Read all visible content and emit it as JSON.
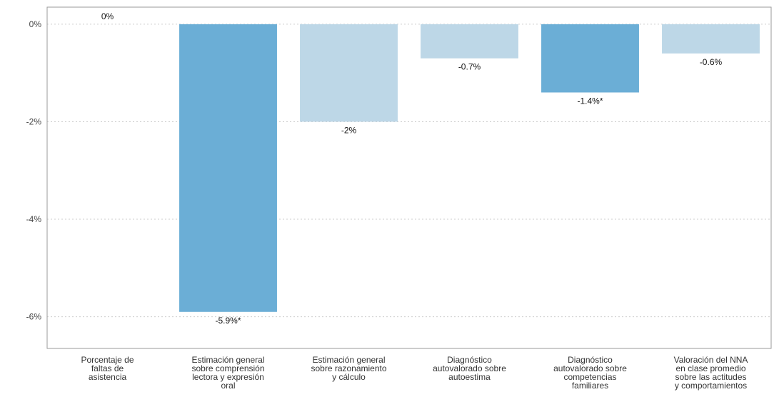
{
  "chart_data": {
    "type": "bar",
    "title": "",
    "xlabel": "",
    "ylabel": "",
    "ylim": [
      -6.65,
      0.35
    ],
    "yticks": [
      0,
      -2,
      -4,
      -6
    ],
    "ytick_labels": [
      "0%",
      "-2%",
      "-4%",
      "-6%"
    ],
    "grid": true,
    "categories": [
      [
        "Porcentaje de",
        "faltas de",
        "asistencia"
      ],
      [
        "Estimación general",
        "sobre comprensión",
        "lectora y expresión",
        "oral"
      ],
      [
        "Estimación general",
        "sobre razonamiento",
        "y cálculo"
      ],
      [
        "Diagnóstico",
        "autovalorado sobre",
        "autoestima"
      ],
      [
        "Diagnóstico",
        "autovalorado sobre",
        "competencias",
        "familiares"
      ],
      [
        "Valoración del NNA",
        "en clase promedio",
        "sobre las actitudes",
        "y comportamientos"
      ]
    ],
    "values": [
      0,
      -5.9,
      -2.0,
      -0.7,
      -1.4,
      -0.6
    ],
    "value_labels": [
      "0%",
      "-5.9%*",
      "-2%",
      "-0.7%",
      "-1.4%*",
      "-0.6%"
    ],
    "significant": [
      false,
      true,
      false,
      false,
      true,
      false
    ],
    "colors": {
      "significant": "#6baed6",
      "not_significant": "#bdd7e7",
      "grid": "#cccccc",
      "frame": "#9a9a9a"
    }
  }
}
